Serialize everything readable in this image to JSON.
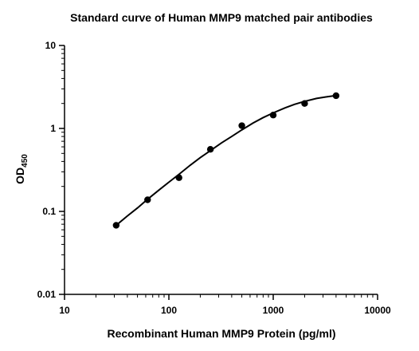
{
  "chart_data": {
    "type": "scatter",
    "title": "Standard curve of Human MMP9 matched pair antibodies",
    "xlabel": "Recombinant Human MMP9 Protein (pg/ml)",
    "ylabel": "OD",
    "ylabel_subscript": "450",
    "xscale": "log",
    "yscale": "log",
    "xlim": [
      10,
      10000
    ],
    "ylim": [
      0.01,
      10
    ],
    "x_ticks": [
      10,
      100,
      1000,
      10000
    ],
    "x_tick_labels": [
      "10",
      "100",
      "1000",
      "10000"
    ],
    "y_ticks": [
      0.01,
      0.1,
      1,
      10
    ],
    "y_tick_labels": [
      "0.01",
      "0.1",
      "1",
      "10"
    ],
    "grid": false,
    "series": [
      {
        "x": [
          31.25,
          62.5,
          125,
          250,
          500,
          1000,
          2000,
          4000
        ],
        "y": [
          0.068,
          0.138,
          0.255,
          0.56,
          1.08,
          1.45,
          2.0,
          2.48
        ],
        "marker": "circle",
        "color": "#000000",
        "fit": "4PL",
        "fit_curve": {
          "x": [
            31.25,
            40,
            50,
            62.5,
            80,
            100,
            125,
            160,
            200,
            250,
            320,
            400,
            500,
            640,
            800,
            1000,
            1300,
            1600,
            2000,
            2600,
            3200,
            4000
          ],
          "y": [
            0.068,
            0.088,
            0.11,
            0.14,
            0.18,
            0.225,
            0.28,
            0.36,
            0.445,
            0.54,
            0.67,
            0.8,
            0.96,
            1.16,
            1.35,
            1.54,
            1.77,
            1.95,
            2.12,
            2.3,
            2.4,
            2.49
          ]
        }
      }
    ]
  }
}
